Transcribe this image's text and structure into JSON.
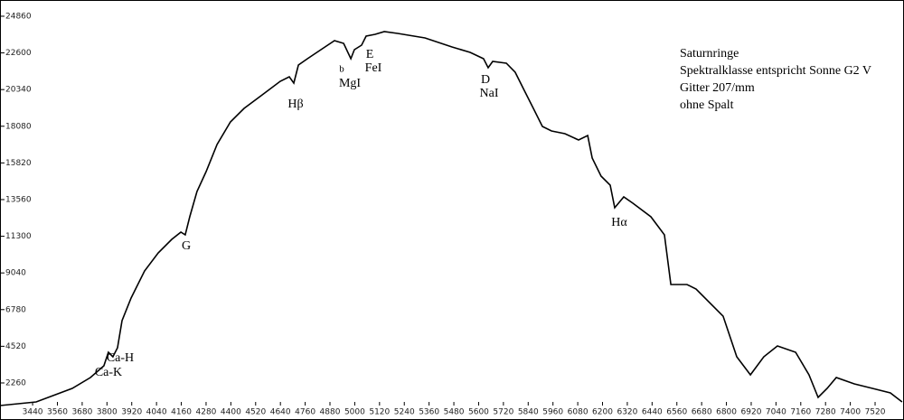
{
  "chart_data": {
    "type": "line",
    "x": [
      3282,
      3457,
      3632,
      3720,
      3785,
      3807,
      3829,
      3851,
      3873,
      3917,
      3982,
      4048,
      4114,
      4158,
      4179,
      4201,
      4236,
      4280,
      4333,
      4398,
      4464,
      4552,
      4639,
      4683,
      4705,
      4727,
      4771,
      4836,
      4902,
      4946,
      4981,
      4998,
      5033,
      5055,
      5099,
      5143,
      5208,
      5340,
      5471,
      5559,
      5624,
      5646,
      5668,
      5734,
      5777,
      5821,
      5865,
      5909,
      5953,
      6018,
      6084,
      6128,
      6150,
      6193,
      6237,
      6259,
      6303,
      6347,
      6434,
      6500,
      6531,
      6609,
      6653,
      6784,
      6850,
      6916,
      6981,
      7047,
      7135,
      7200,
      7244,
      7288,
      7332,
      7419,
      7507,
      7594,
      7651
    ],
    "series": [
      {
        "color": "#000000",
        "values": [
          867,
          1090,
          1924,
          2592,
          3316,
          4151,
          3873,
          4429,
          6099,
          7491,
          9161,
          10274,
          11109,
          11554,
          11387,
          12501,
          14059,
          15284,
          16954,
          18345,
          19180,
          20015,
          20850,
          21129,
          20739,
          21852,
          22242,
          22798,
          23355,
          23188,
          22242,
          22798,
          23077,
          23633,
          23745,
          23912,
          23800,
          23522,
          22965,
          22631,
          22242,
          21685,
          22075,
          21964,
          21407,
          20294,
          19180,
          18067,
          17789,
          17622,
          17232,
          17510,
          16119,
          15006,
          14449,
          13057,
          13725,
          13336,
          12501,
          11387,
          8326,
          8326,
          8048,
          6378,
          3873,
          2759,
          3873,
          4541,
          4151,
          2759,
          1368,
          1924,
          2592,
          2203,
          1924,
          1646,
          1090
        ]
      }
    ],
    "xlim": [
      3282,
      7660
    ],
    "ylim": [
      700,
      25860
    ],
    "xticks": [
      3440,
      3560,
      3680,
      3800,
      3920,
      4040,
      4160,
      4280,
      4400,
      4520,
      4640,
      4760,
      4880,
      5000,
      5120,
      5240,
      5360,
      5480,
      5600,
      5720,
      5840,
      5960,
      6080,
      6200,
      6320,
      6440,
      6560,
      6680,
      6800,
      6920,
      7040,
      7160,
      7280,
      7400,
      7520
    ],
    "yticks": [
      2260,
      4520,
      6780,
      9040,
      11300,
      13560,
      15820,
      18080,
      20340,
      22600,
      24860
    ],
    "annotations": [
      "Ca-H",
      "Ca-K",
      "G",
      "Hβ",
      "b",
      "MgI",
      "E",
      "FeI",
      "D",
      "NaI",
      "Hα"
    ],
    "info": [
      "Saturnringe",
      "Spektralklasse entspricht Sonne G2 V",
      "Gitter 207/mm",
      "ohne Spalt"
    ]
  }
}
